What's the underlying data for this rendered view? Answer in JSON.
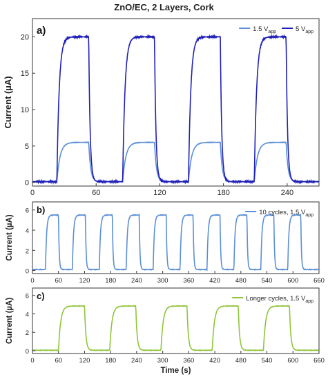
{
  "title": "ZnO/EC, 2 Layers, Cork",
  "chart_data": [
    {
      "panel": "a)",
      "type": "line",
      "ylabel": "Current (µA)",
      "xlim": [
        0,
        270
      ],
      "ylim": [
        -0.5,
        22.5
      ],
      "xticks": [
        "0",
        "60",
        "120",
        "180",
        "240"
      ],
      "yticks": [
        "0",
        "5",
        "10",
        "15",
        "20"
      ],
      "grid": false,
      "legend_position": "top-right",
      "period": 62,
      "on_duration": 30,
      "first_on": 23,
      "series": [
        {
          "name": "1.5 V",
          "name_sub": "app",
          "color": "#5b8fd6",
          "on_level": 5.5,
          "off_level": 0.1,
          "tau": 3.0,
          "cycles": 4
        },
        {
          "name": "5 V",
          "name_sub": "app",
          "color": "#1f1fb8",
          "on_level": 20.0,
          "off_level": 0.1,
          "tau": 2.2,
          "cycles": 4
        }
      ]
    },
    {
      "panel": "b)",
      "type": "line",
      "ylabel": "Current (µA)",
      "xlim": [
        0,
        660
      ],
      "ylim": [
        -0.3,
        6.8
      ],
      "xticks": [
        "0",
        "60",
        "120",
        "180",
        "240",
        "300",
        "360",
        "420",
        "480",
        "540",
        "600",
        "660"
      ],
      "yticks": [
        "0",
        "2",
        "4",
        "6"
      ],
      "grid": false,
      "legend_position": "top-right",
      "period": 62,
      "on_duration": 30,
      "first_on": 30,
      "series": [
        {
          "name": "10 cycles, 1.5 V",
          "name_sub": "app",
          "color": "#5b8fd6",
          "on_level": 5.5,
          "off_level": 0.1,
          "tau": 2.5,
          "cycles": 10
        }
      ]
    },
    {
      "panel": "c)",
      "type": "line",
      "ylabel": "Current (µA)",
      "xlabel": "Time (s)",
      "xlim": [
        0,
        660
      ],
      "ylim": [
        -0.3,
        6.8
      ],
      "xticks": [
        "0",
        "60",
        "120",
        "180",
        "240",
        "300",
        "360",
        "420",
        "480",
        "540",
        "600",
        "660"
      ],
      "yticks": [
        "0",
        "2",
        "4",
        "6"
      ],
      "grid": false,
      "legend_position": "top-right",
      "period": 118,
      "on_duration": 60,
      "first_on": 60,
      "series": [
        {
          "name": "Longer cycles, 1.5 V",
          "name_sub": "app",
          "color": "#8fc53a",
          "on_level": 4.85,
          "off_level": 0.05,
          "tau": 5.0,
          "cycles": 5
        }
      ]
    }
  ]
}
